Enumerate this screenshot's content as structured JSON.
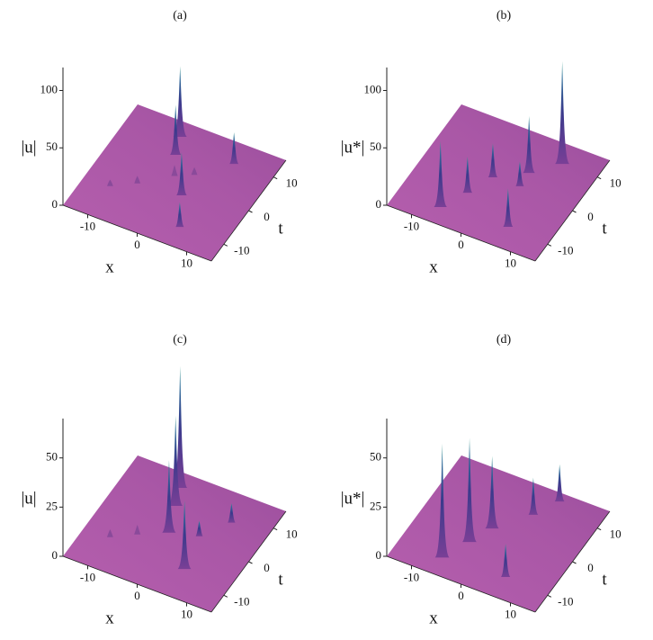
{
  "panels": [
    {
      "label": "(a)",
      "zlabel": "|u|",
      "xlabel": "x",
      "tlabel": "t",
      "zlim": [
        0,
        120
      ],
      "zticks": [
        0,
        50,
        100
      ],
      "xlim": [
        -15,
        15
      ],
      "xticks": [
        -10,
        0,
        10
      ],
      "tlim": [
        -15,
        15
      ],
      "tticks": [
        -10,
        0,
        10
      ],
      "peaks": [
        {
          "x": -4.7,
          "t": 11.6,
          "z": 60
        },
        {
          "x": -3.3,
          "t": 7,
          "z": 42
        },
        {
          "x": 2.4,
          "t": -1.9,
          "z": 36
        },
        {
          "x": 5.8,
          "t": -9.4,
          "z": 20
        },
        {
          "x": 7,
          "t": 10,
          "z": 26
        },
        {
          "x": -1,
          "t": 2,
          "z": 8
        },
        {
          "x": -6,
          "t": -3,
          "z": 5
        },
        {
          "x": -10,
          "t": -6,
          "z": 4
        },
        {
          "x": 2,
          "t": 4,
          "z": 5
        }
      ]
    },
    {
      "label": "(b)",
      "zlabel": "|u*|",
      "xlabel": "x",
      "tlabel": "t",
      "zlim": [
        0,
        120
      ],
      "zticks": [
        0,
        50,
        100
      ],
      "xlim": [
        -15,
        15
      ],
      "xticks": [
        -10,
        0,
        10
      ],
      "tlim": [
        -15,
        15
      ],
      "tticks": [
        -10,
        0,
        10
      ],
      "peaks": [
        {
          "x": -6.5,
          "t": -10.3,
          "z": 56
        },
        {
          "x": -3.9,
          "t": -4.6,
          "z": 30
        },
        {
          "x": -1.7,
          "t": 1.2,
          "z": 28
        },
        {
          "x": 3.5,
          "t": 5.4,
          "z": 48
        },
        {
          "x": 7.7,
          "t": 10.4,
          "z": 88
        },
        {
          "x": 6.5,
          "t": -9,
          "z": 32
        },
        {
          "x": 3.6,
          "t": 1.5,
          "z": 20
        }
      ]
    },
    {
      "label": "(c)",
      "zlabel": "|u|",
      "xlabel": "x",
      "tlabel": "t",
      "zlim": [
        0,
        70
      ],
      "zticks": [
        0,
        25,
        50
      ],
      "xlim": [
        -15,
        15
      ],
      "xticks": [
        -10,
        0,
        10
      ],
      "tlim": [
        -15,
        15
      ],
      "tticks": [
        -10,
        0,
        10
      ],
      "peaks": [
        {
          "x": -4.7,
          "t": 11.6,
          "z": 61
        },
        {
          "x": -3.3,
          "t": 7,
          "z": 45
        },
        {
          "x": -1.2,
          "t": 0.2,
          "z": 36
        },
        {
          "x": 5.5,
          "t": -6.9,
          "z": 34
        },
        {
          "x": 7.5,
          "t": 8,
          "z": 9
        },
        {
          "x": 4,
          "t": 2,
          "z": 7
        },
        {
          "x": -6,
          "t": -3,
          "z": 4
        },
        {
          "x": -10,
          "t": -6,
          "z": 3
        }
      ]
    },
    {
      "label": "(d)",
      "zlabel": "|u*|",
      "xlabel": "x",
      "tlabel": "t",
      "zlim": [
        0,
        70
      ],
      "zticks": [
        0,
        25,
        50
      ],
      "xlim": [
        -15,
        15
      ],
      "xticks": [
        -10,
        0,
        10
      ],
      "tlim": [
        -15,
        15
      ],
      "tticks": [
        -10,
        0,
        10
      ],
      "peaks": [
        {
          "x": -6.3,
          "t": -10,
          "z": 57
        },
        {
          "x": -3.8,
          "t": -4,
          "z": 52
        },
        {
          "x": -1.8,
          "t": 1.1,
          "z": 36
        },
        {
          "x": 3.1,
          "t": 7.9,
          "z": 18
        },
        {
          "x": 5.7,
          "t": 13.3,
          "z": 18
        },
        {
          "x": 6,
          "t": -9,
          "z": 16
        }
      ]
    }
  ]
}
